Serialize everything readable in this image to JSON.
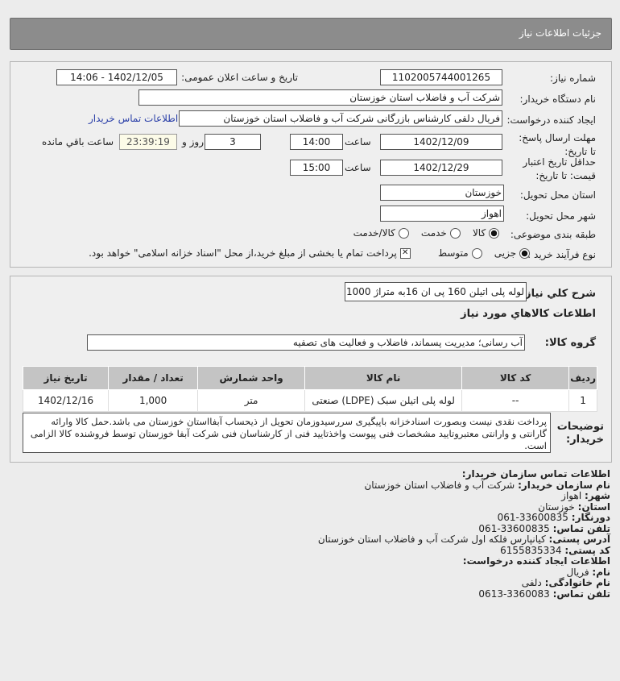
{
  "header": {
    "title": "جزئیات اطلاعات نیاز"
  },
  "form": {
    "need_number_label": "شماره نیاز:",
    "need_number": "1102005744001265",
    "announce_label": "تاریخ و ساعت اعلان عمومی:",
    "announce_value": "1402/12/05 - 14:06",
    "buyer_label": "نام دستگاه خریدار:",
    "buyer": "شرکت آب و فاضلاب استان خوزستان",
    "creator_label": "ایجاد کننده درخواست:",
    "creator": "فریال دلفی کارشناس بازرگانی شرکت آب و فاضلاب استان خوزستان",
    "contact_link": "اطلاعات تماس خریدار",
    "deadline_label": "مهلت ارسال پاسخ: تا تاریخ:",
    "deadline_date": "1402/12/09",
    "time_label": "ساعت",
    "deadline_time": "14:00",
    "days": "3",
    "days_label": "روز و",
    "remaining": "23:39:19",
    "remaining_label": "ساعت باقي مانده",
    "validity_label": "حداقل تاریخ اعتبار قیمت: تا تاریخ:",
    "validity_date": "1402/12/29",
    "validity_time": "15:00",
    "province_label": "استان محل تحویل:",
    "province": "خوزستان",
    "city_label": "شهر محل تحویل:",
    "city": "اهواز",
    "category_label": "طبقه بندی موضوعی:",
    "category_options": [
      "کالا",
      "خدمت",
      "کالا/خدمت"
    ],
    "category_selected": "کالا",
    "process_label": "نوع فرآیند خرید :",
    "process_options": [
      "جزیی",
      "متوسط"
    ],
    "process_selected": "جزیی",
    "payment_note": "پرداخت تمام یا بخشی از مبلغ خرید،از محل \"اسناد خزانه اسلامی\" خواهد بود."
  },
  "need": {
    "summary_label": "شرح كلي نياز:",
    "summary": "لوله پلی اتیلن 160 پی ان 16به متراژ 1000",
    "goods_title": "اطلاعات کالاهاي مورد نياز",
    "group_label": "گروه کالا:",
    "group": "آب رسانی؛ مدیریت پسماند، فاضلاب و فعالیت های تصفیه",
    "table": {
      "headers": [
        "ردیف",
        "کد کالا",
        "نام کالا",
        "واحد شمارش",
        "تعداد / مقدار",
        "تاریخ نیاز"
      ],
      "rows": [
        [
          "1",
          "--",
          "لوله پلی اتیلن سبک (LDPE) صنعتی",
          "متر",
          "1,000",
          "1402/12/16"
        ]
      ]
    },
    "notes_label": "توضیحات خریدار:",
    "notes": "پرداخت نقدی نیست وبصورت اسنادخزانه باپیگیری سررسیدوزمان تحویل از ذیحساب آبفااستان خوزستان می باشد.حمل کالا وارائه گارانتی و وارانتی معتبروتایید مشخصات فنی پیوست واخذتایید فنی از کارشناسان فنی شرکت آبفا خوزستان توسط فروشنده کالا الزامی است."
  },
  "contact": {
    "title": "اطلاعات تماس سازمان خریدار:",
    "org_label": "نام سازمان خریدار:",
    "org": "شرکت آب و فاضلاب استان خوزستان",
    "city_label": "شهر:",
    "city": "اهواز",
    "province_label": "استان:",
    "province": "خوزستان",
    "fax_label": "دورنگار:",
    "fax": "061-33600835",
    "phone_label": "تلفن تماس:",
    "phone": "061-33600835",
    "address_label": "آدرس پستی:",
    "address": "کیانپارس فلکه اول شرکت آب و فاضلاب استان خوزستان",
    "postal_label": "کد پستی:",
    "postal": "6155835334",
    "creator_title": "اطلاعات ایجاد کننده درخواست:",
    "name_label": "نام:",
    "name": "فریال",
    "family_label": "نام خانوادگی:",
    "family": "دلفی",
    "creator_phone_label": "تلفن تماس:",
    "creator_phone": "0613-3360083"
  }
}
